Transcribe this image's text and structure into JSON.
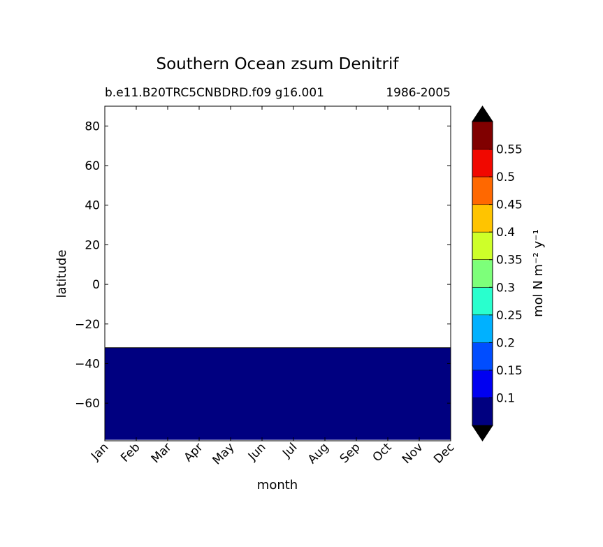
{
  "chart_data": {
    "type": "heatmap",
    "title": "Southern Ocean zsum Denitrif",
    "subtitle_left": "b.e11.B20TRC5CNBDRD.f09 g16.001",
    "subtitle_right": "1986-2005",
    "xlabel": "month",
    "ylabel": "latitude",
    "x_categories": [
      "Jan",
      "Feb",
      "Mar",
      "Apr",
      "May",
      "Jun",
      "Jul",
      "Aug",
      "Sep",
      "Oct",
      "Nov",
      "Dec"
    ],
    "ylim": [
      -79,
      90
    ],
    "y_ticks": [
      80,
      60,
      40,
      20,
      0,
      -20,
      -40,
      -60
    ],
    "y_tick_labels": [
      "80",
      "60",
      "40",
      "20",
      "0",
      "−20",
      "−40",
      "−60"
    ],
    "filled_region": {
      "lat_min": -78.5,
      "lat_max": -32,
      "value_bin": "below 0.1",
      "color": "#000080"
    },
    "colorbar": {
      "label": "mol N m⁻² y⁻¹",
      "extend": "both",
      "levels": [
        0.1,
        0.15,
        0.2,
        0.25,
        0.3,
        0.35,
        0.4,
        0.45,
        0.5,
        0.55
      ],
      "tick_labels": [
        "0.1",
        "0.15",
        "0.2",
        "0.25",
        "0.3",
        "0.35",
        "0.4",
        "0.45",
        "0.5",
        "0.55"
      ],
      "colors": [
        "#000080",
        "#0000f1",
        "#004dff",
        "#00b1ff",
        "#29ffce",
        "#7dff7a",
        "#ceff29",
        "#ffc400",
        "#ff6800",
        "#f10800",
        "#800000"
      ],
      "extend_color": "#000000"
    }
  }
}
